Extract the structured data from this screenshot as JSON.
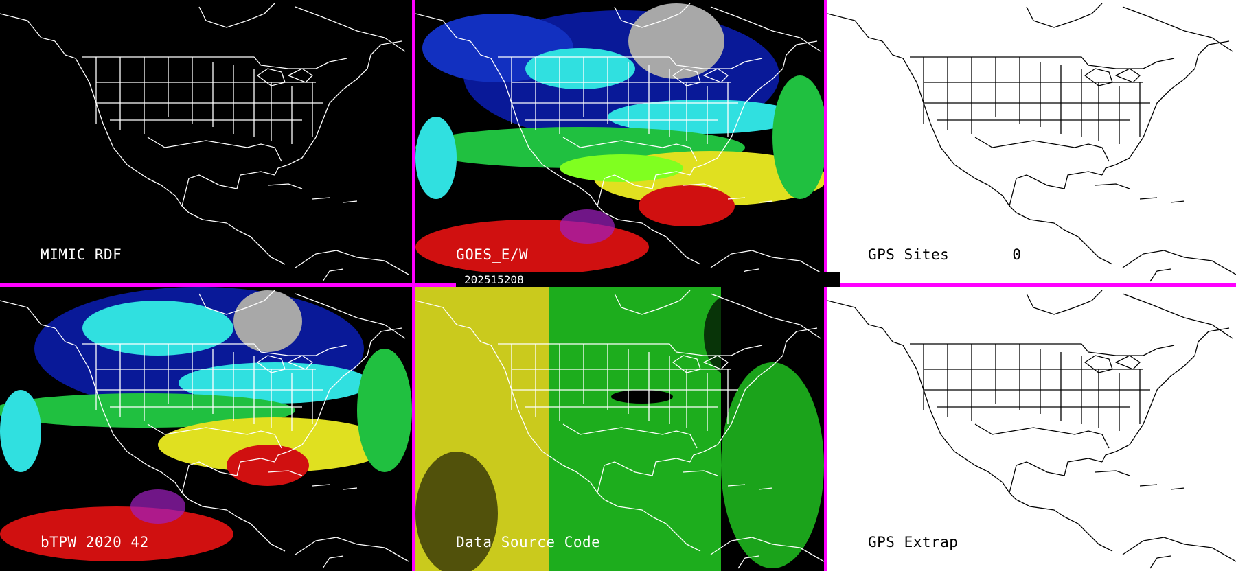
{
  "timestamp": "202515208",
  "panels": [
    {
      "id": "mimic-rdf",
      "label": "MIMIC RDF",
      "theme": "dark",
      "imagery": "none"
    },
    {
      "id": "goes-ew",
      "label": "GOES_E/W",
      "theme": "dark",
      "imagery": "tpw"
    },
    {
      "id": "gps-sites",
      "label": "GPS Sites",
      "count": "0",
      "theme": "light",
      "imagery": "none"
    },
    {
      "id": "btpw",
      "label": "bTPW_2020_42",
      "theme": "dark",
      "imagery": "tpw"
    },
    {
      "id": "data-source-code",
      "label": "Data_Source_Code",
      "theme": "dark",
      "imagery": "source"
    },
    {
      "id": "gps-extrap",
      "label": "GPS_Extrap",
      "theme": "light",
      "imagery": "none"
    }
  ],
  "colors": {
    "separator": "#ff00ff",
    "dark_background": "#000000",
    "light_background": "#ffffff",
    "tpw_scale": [
      "#a8a8a8",
      "#0a1aa0",
      "#3050e0",
      "#30e0e0",
      "#20c040",
      "#80ff20",
      "#e0e020",
      "#d01010",
      "#a020c0"
    ],
    "source_scale": [
      "#e0e020",
      "#20c020"
    ]
  }
}
